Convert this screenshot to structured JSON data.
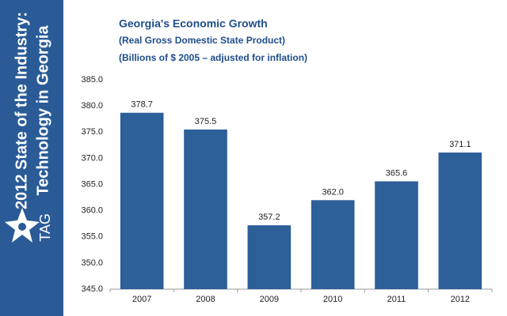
{
  "sidebar": {
    "lines": [
      "2012 State of the Industry:",
      "Technology in Georgia"
    ],
    "logo": "TAG"
  },
  "chart_data": {
    "type": "bar",
    "title": "Georgia's Economic Growth",
    "subtitle": [
      "(Real Gross Domestic State Product)",
      "(Billions of $ 2005 – adjusted for inflation)"
    ],
    "categories": [
      "2007",
      "2008",
      "2009",
      "2010",
      "2011",
      "2012"
    ],
    "values": [
      378.7,
      375.5,
      357.2,
      362.0,
      365.6,
      371.1
    ],
    "value_labels": [
      "378.7",
      "375.5",
      "357.2",
      "362.0",
      "365.6",
      "371.1"
    ],
    "color": "#2d5f99",
    "ylim": [
      345,
      385
    ],
    "yticks": [
      {
        "value": 345,
        "label": "345.0"
      },
      {
        "value": 350,
        "label": "350.0"
      },
      {
        "value": 355,
        "label": "355.0"
      },
      {
        "value": 360,
        "label": "360.0"
      },
      {
        "value": 365,
        "label": "365.0"
      },
      {
        "value": 370,
        "label": "370.0"
      },
      {
        "value": 375,
        "label": "375.0"
      },
      {
        "value": 380,
        "label": "380.0"
      },
      {
        "value": 385,
        "label": "385.0"
      }
    ],
    "grid": false
  }
}
